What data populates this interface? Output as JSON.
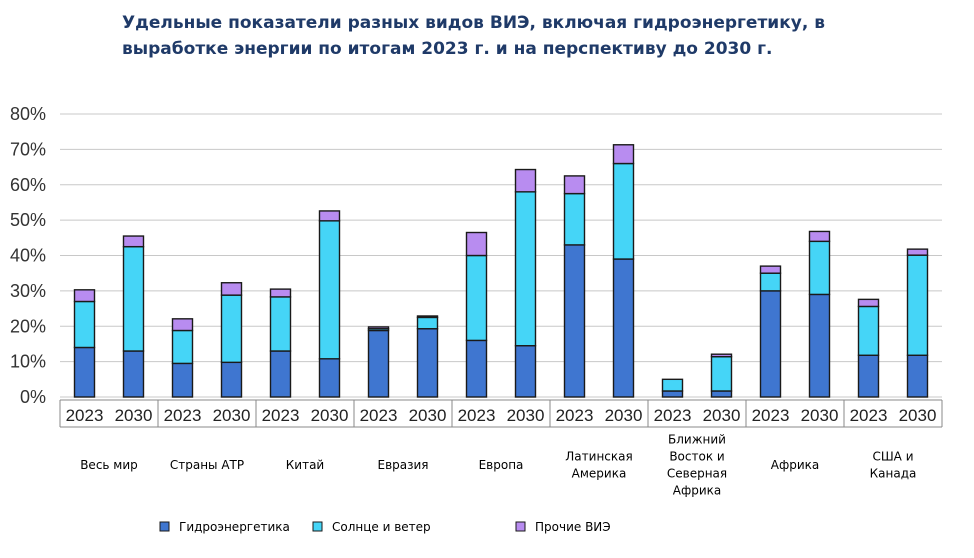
{
  "title": "Удельные показатели разных видов ВИЭ, включая гидроэнергетику, в выработке энергии по итогам 2023 г. и на перспективу до 2030 г.",
  "colors": {
    "hydro": "#3f76d0",
    "solar_wind": "#45d5f7",
    "other": "#b88cf0",
    "outline": "#1a1a1a",
    "grid": "#c8c8c8"
  },
  "chart_data": {
    "type": "bar",
    "stacked": true,
    "ylim": [
      0,
      80
    ],
    "yticks": [
      "0%",
      "10%",
      "20%",
      "30%",
      "40%",
      "50%",
      "60%",
      "70%",
      "80%"
    ],
    "grid": true,
    "legend_position": "bottom",
    "groups": [
      {
        "label": [
          "Весь мир"
        ],
        "years": [
          "2023",
          "2030"
        ]
      },
      {
        "label": [
          "Страны АТР"
        ],
        "years": [
          "2023",
          "2030"
        ]
      },
      {
        "label": [
          "Китай"
        ],
        "years": [
          "2023",
          "2030"
        ]
      },
      {
        "label": [
          "Евразия"
        ],
        "years": [
          "2023",
          "2030"
        ]
      },
      {
        "label": [
          "Европа"
        ],
        "years": [
          "2023",
          "2030"
        ]
      },
      {
        "label": [
          "Латинская",
          "Америка"
        ],
        "years": [
          "2023",
          "2030"
        ]
      },
      {
        "label": [
          "Ближний",
          "Восток и",
          "Северная",
          "Африка"
        ],
        "years": [
          "2023",
          "2030"
        ]
      },
      {
        "label": [
          "Африка"
        ],
        "years": [
          "2023",
          "2030"
        ]
      },
      {
        "label": [
          "США и",
          "Канада"
        ],
        "years": [
          "2023",
          "2030"
        ]
      }
    ],
    "series": [
      {
        "name": "Гидроэнергетика",
        "key": "hydro",
        "values": [
          14,
          13,
          9.5,
          9.8,
          13,
          10.8,
          18.8,
          19.3,
          16,
          14.5,
          43,
          39,
          1.7,
          1.7,
          30,
          29,
          11.8,
          11.8
        ]
      },
      {
        "name": "Солнце и ветер",
        "key": "solar_wind",
        "values": [
          13,
          29.5,
          9.3,
          19,
          15.3,
          39,
          0.5,
          3.2,
          24,
          43.5,
          14.5,
          27,
          3.3,
          9.7,
          5,
          15,
          13.8,
          28.3
        ]
      },
      {
        "name": "Прочие ВИЭ",
        "key": "other",
        "values": [
          3.3,
          3,
          3.3,
          3.5,
          2.2,
          2.8,
          0.5,
          0.4,
          6.5,
          6.3,
          5,
          5.3,
          0,
          0.7,
          2,
          2.8,
          2,
          1.7
        ]
      }
    ]
  }
}
